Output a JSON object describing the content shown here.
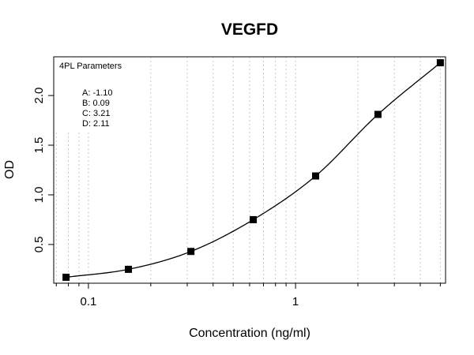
{
  "chart_data": {
    "type": "scatter",
    "title": "VEGFD",
    "xlabel": "Concentration (ng/ml)",
    "ylabel": "OD",
    "x_scale": "log",
    "xlim": [
      0.068,
      5.3
    ],
    "ylim": [
      0.11,
      2.39
    ],
    "x_ticks": [
      {
        "value": 0.1,
        "label": "0.1"
      },
      {
        "value": 1,
        "label": "1"
      }
    ],
    "y_ticks": [
      {
        "value": 0.5,
        "label": "0.5"
      },
      {
        "value": 1.0,
        "label": "1.0"
      },
      {
        "value": 1.5,
        "label": "1.5"
      },
      {
        "value": 2.0,
        "label": "2.0"
      }
    ],
    "grid": "vertical dotted gray at log minor ticks",
    "series": [
      {
        "x": [
          0.078,
          0.156,
          0.3125,
          0.625,
          1.25,
          2.5,
          5.0
        ],
        "y": [
          0.17,
          0.25,
          0.43,
          0.75,
          1.19,
          1.81,
          2.33
        ]
      }
    ],
    "fit": {
      "model": "4PL",
      "A": -1.1,
      "B": 0.09,
      "C": 3.21,
      "D": 2.11
    },
    "legend": {
      "position": "top-left",
      "title": "4PL Parameters",
      "lines": [
        "A: -1.10",
        "B: 0.09",
        "C: 3.21",
        "D: 2.11"
      ]
    }
  }
}
